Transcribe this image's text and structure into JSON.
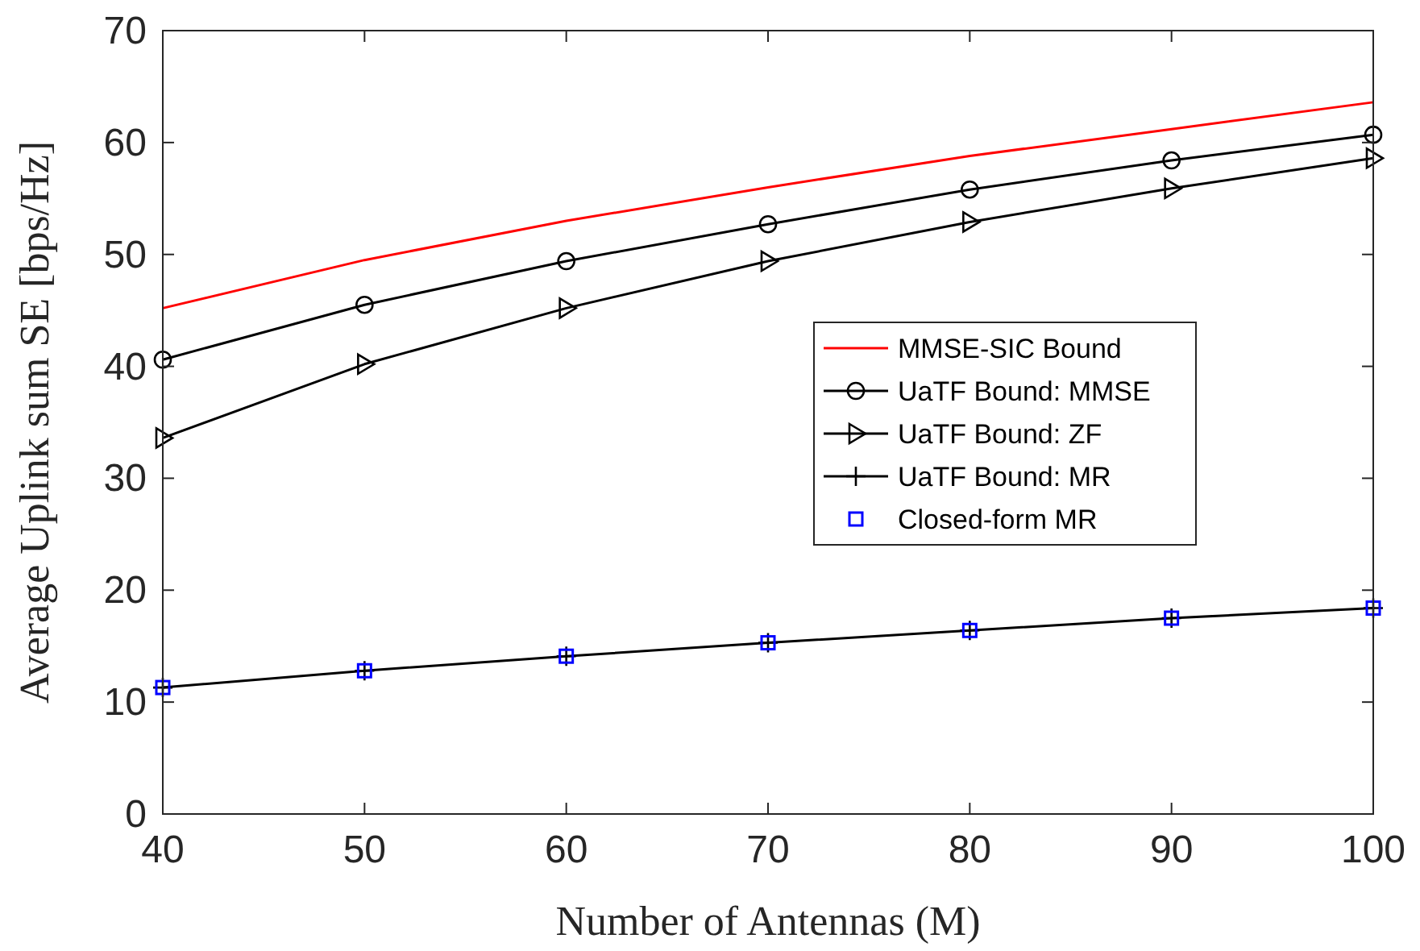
{
  "chart_data": {
    "type": "line",
    "xlabel": "Number of Antennas (M)",
    "ylabel": "Average Uplink sum SE [bps/Hz]",
    "x": [
      40,
      50,
      60,
      70,
      80,
      90,
      100
    ],
    "xlim": [
      40,
      100
    ],
    "xticks": [
      40,
      50,
      60,
      70,
      80,
      90,
      100
    ],
    "ylim": [
      0,
      70
    ],
    "yticks": [
      0,
      10,
      20,
      30,
      40,
      50,
      60,
      70
    ],
    "grid": false,
    "legend": "right",
    "series": [
      {
        "name": "MMSE-SIC Bound",
        "color": "#ff0000",
        "marker": "none",
        "values": [
          45.2,
          49.5,
          53,
          56,
          58.8,
          61.2,
          63.6
        ]
      },
      {
        "name": "UaTF Bound: MMSE",
        "color": "#000000",
        "marker": "circle",
        "values": [
          40.6,
          45.5,
          49.4,
          52.7,
          55.8,
          58.4,
          60.7
        ]
      },
      {
        "name": "UaTF Bound: ZF",
        "color": "#000000",
        "marker": "triangle",
        "values": [
          33.6,
          40.2,
          45.2,
          49.4,
          52.9,
          55.9,
          58.6
        ]
      },
      {
        "name": "UaTF Bound: MR",
        "color": "#000000",
        "marker": "cross",
        "values": [
          11.3,
          12.8,
          14.1,
          15.3,
          16.4,
          17.5,
          18.4
        ]
      },
      {
        "name": "Closed-form MR",
        "type": "scatter",
        "color": "#0000ff",
        "marker": "square",
        "values": [
          11.3,
          12.8,
          14.1,
          15.3,
          16.4,
          17.5,
          18.4
        ]
      }
    ]
  }
}
